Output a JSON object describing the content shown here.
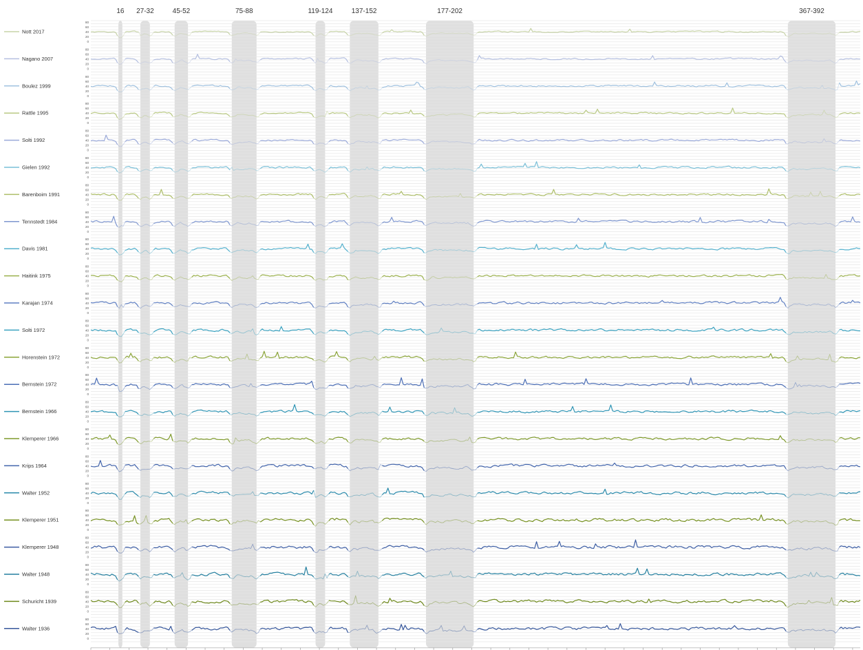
{
  "chart_data": {
    "type": "line",
    "subtype": "stacked small-multiple line chart (one strip per recording)",
    "x_ticks": [
      1,
      11,
      21,
      31,
      41,
      51,
      61,
      71,
      81,
      91,
      101,
      111,
      121,
      131,
      141,
      151,
      161,
      171,
      181,
      191,
      201,
      211,
      221,
      231,
      241,
      251,
      261,
      271,
      281,
      291,
      301,
      311,
      321,
      331,
      341,
      351,
      361,
      371,
      381,
      391,
      401
    ],
    "xlim": [
      1,
      405
    ],
    "per_strip_y_ticks": [
      "80",
      "60",
      "40",
      "20",
      "0"
    ],
    "grid": true,
    "highlighted_ranges": [
      {
        "label": "16",
        "start": 16,
        "end": 17
      },
      {
        "label": "27-32",
        "start": 27,
        "end": 32
      },
      {
        "label": "45-52",
        "start": 45,
        "end": 52
      },
      {
        "label": "75-88",
        "start": 75,
        "end": 88
      },
      {
        "label": "119-124",
        "start": 119,
        "end": 124
      },
      {
        "label": "137-152",
        "start": 137,
        "end": 152
      },
      {
        "label": "177-202",
        "start": 177,
        "end": 202
      },
      {
        "label": "367-392",
        "start": 367,
        "end": 392
      }
    ],
    "series": [
      {
        "name": "Nott 2017",
        "color": "#c7d3a7",
        "baseline": 52,
        "variability": 0.6
      },
      {
        "name": "Nagano 2007",
        "color": "#b4bfe0",
        "baseline": 52,
        "variability": 0.7
      },
      {
        "name": "Boulez 1999",
        "color": "#9fc1df",
        "baseline": 52,
        "variability": 0.8
      },
      {
        "name": "Rattle 1995",
        "color": "#b9c983",
        "baseline": 52,
        "variability": 0.8
      },
      {
        "name": "Solti 1992",
        "color": "#9aa9d9",
        "baseline": 52,
        "variability": 0.9
      },
      {
        "name": "Gielen 1992",
        "color": "#79bfd7",
        "baseline": 52,
        "variability": 0.9
      },
      {
        "name": "Barenboim 1991",
        "color": "#adbe68",
        "baseline": 52,
        "variability": 0.9
      },
      {
        "name": "Tennstedt 1984",
        "color": "#7e96cf",
        "baseline": 52,
        "variability": 1.0
      },
      {
        "name": "Davis 1981",
        "color": "#52b0cd",
        "baseline": 52,
        "variability": 1.0
      },
      {
        "name": "Haitink 1975",
        "color": "#9bb14d",
        "baseline": 52,
        "variability": 1.0
      },
      {
        "name": "Karajan 1974",
        "color": "#5f7fc2",
        "baseline": 52,
        "variability": 1.1
      },
      {
        "name": "Solti 1972",
        "color": "#3aa2c0",
        "baseline": 52,
        "variability": 1.1
      },
      {
        "name": "Horenstein 1972",
        "color": "#8aa437",
        "baseline": 52,
        "variability": 1.1
      },
      {
        "name": "Bernstein 1972",
        "color": "#4a6db5",
        "baseline": 52,
        "variability": 1.2
      },
      {
        "name": "Bernstein 1966",
        "color": "#2e94b4",
        "baseline": 52,
        "variability": 1.2
      },
      {
        "name": "Klemperer 1966",
        "color": "#7f9a2b",
        "baseline": 52,
        "variability": 1.2
      },
      {
        "name": "Krips 1964",
        "color": "#4264ab",
        "baseline": 52,
        "variability": 1.3
      },
      {
        "name": "Walter 1952",
        "color": "#2a8aab",
        "baseline": 52,
        "variability": 1.3
      },
      {
        "name": "Klemperer 1951",
        "color": "#76911f",
        "baseline": 52,
        "variability": 1.5
      },
      {
        "name": "Klemperer 1948",
        "color": "#3b5ca3",
        "baseline": 52,
        "variability": 1.5
      },
      {
        "name": "Walter 1948",
        "color": "#237f9f",
        "baseline": 52,
        "variability": 1.4
      },
      {
        "name": "Schuricht 1939",
        "color": "#6d881a",
        "baseline": 52,
        "variability": 1.4
      },
      {
        "name": "Walter 1936",
        "color": "#35569b",
        "baseline": 52,
        "variability": 1.4
      }
    ]
  }
}
